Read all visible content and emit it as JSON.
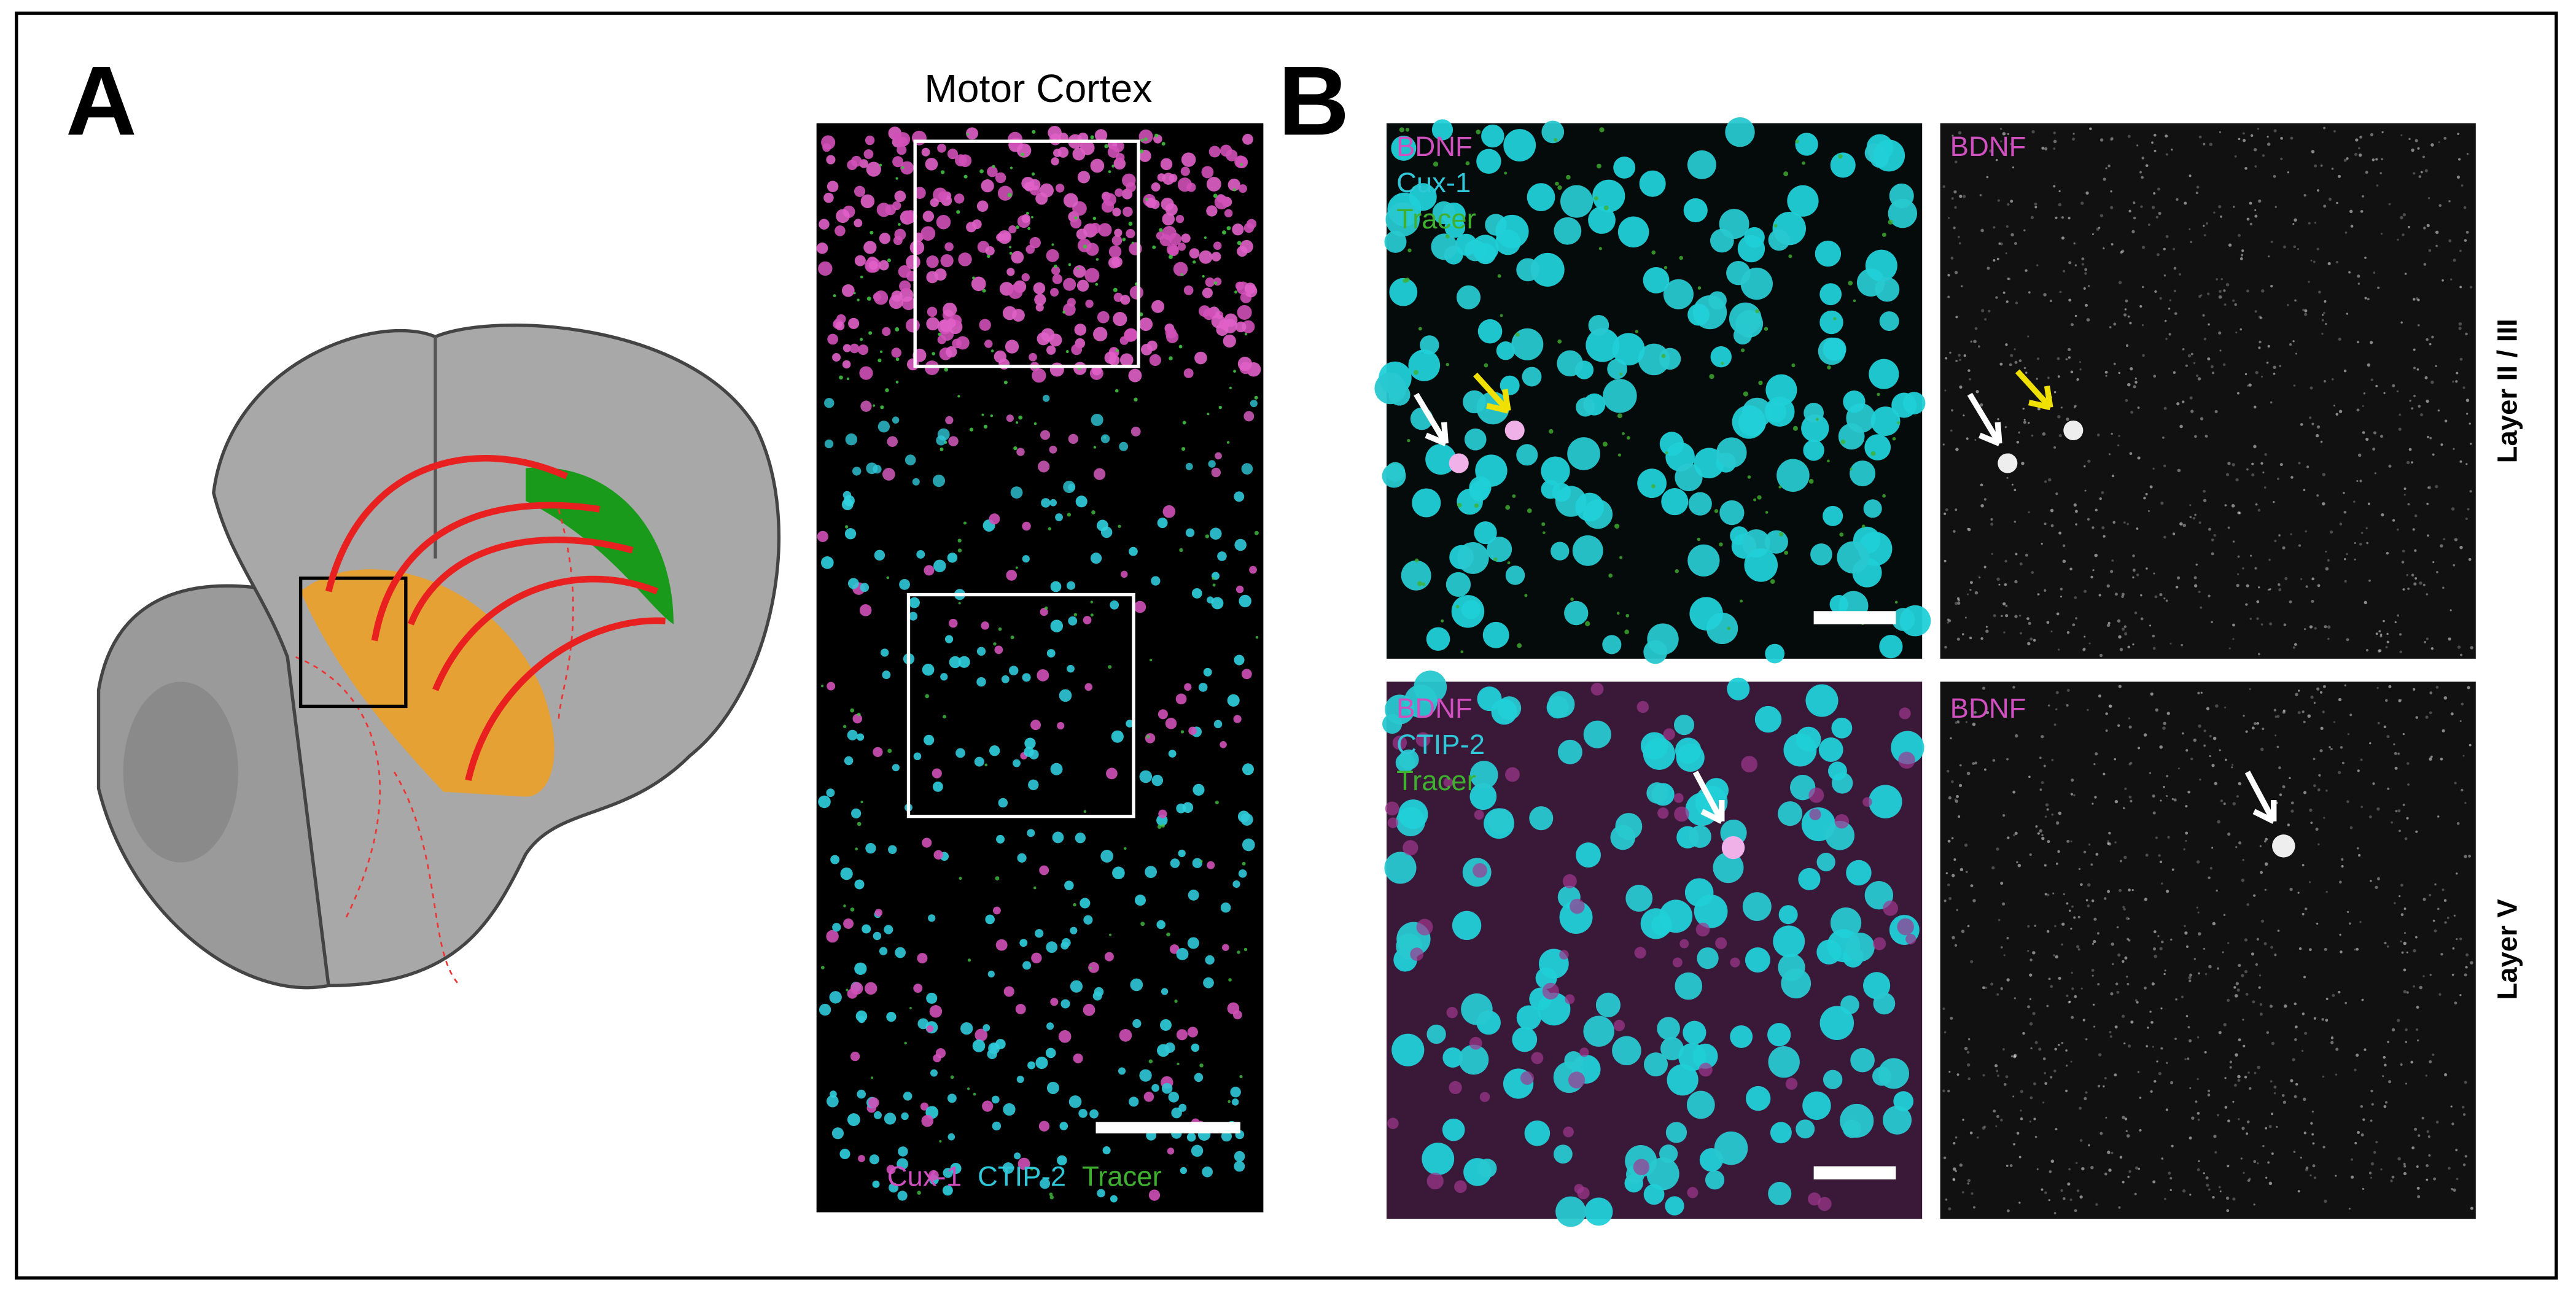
{
  "panel_a": {
    "label": "A",
    "section_title": "Motor Cortex",
    "legend": [
      "Cux-1",
      "CTIP-2",
      "Tracer"
    ]
  },
  "panel_b": {
    "label": "B",
    "panels": [
      {
        "labels": [
          "BDNF",
          "Cux-1",
          "Tracer"
        ]
      },
      {
        "labels": [
          "BDNF"
        ]
      },
      {
        "labels": [
          "BDNF",
          "CTIP-2",
          "Tracer"
        ]
      },
      {
        "labels": [
          "BDNF"
        ]
      }
    ],
    "rows": [
      "Layer II / III",
      "Layer V"
    ]
  }
}
